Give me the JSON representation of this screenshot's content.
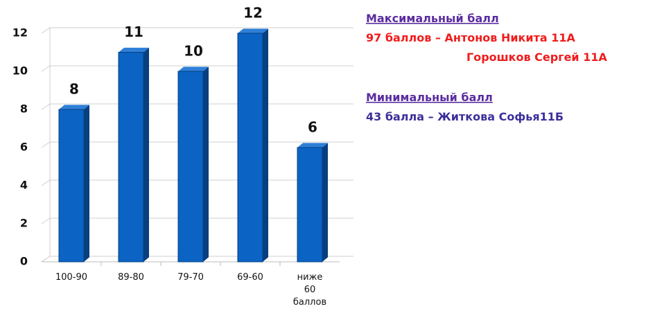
{
  "chart_data": {
    "type": "bar",
    "categories": [
      "100-90",
      "89-80",
      "79-70",
      "69-60",
      "ниже 60 баллов"
    ],
    "values": [
      8,
      11,
      10,
      12,
      6
    ],
    "color": "#0b63c4",
    "ylim": [
      0,
      12
    ],
    "yticks": [
      0,
      2,
      4,
      6,
      8,
      10,
      12
    ],
    "grid": true,
    "annotations": [
      "Максимальный балл",
      "97 баллов – Антонов Никита 11А",
      "Горошков Сергей 11А",
      "Минимальный балл",
      "43 балла – Житкова Софья11Б"
    ]
  }
}
